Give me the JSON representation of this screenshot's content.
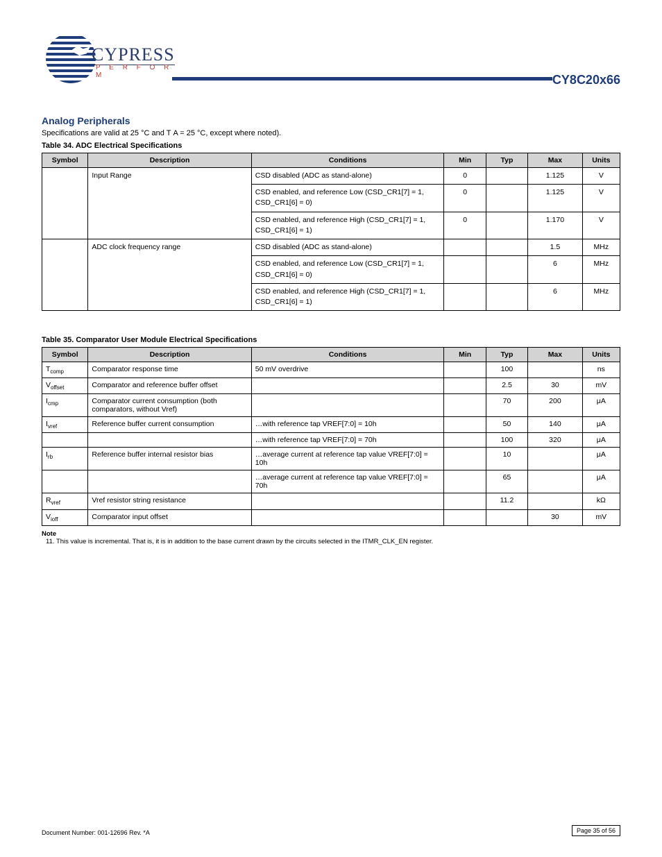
{
  "header": {
    "brand_top": "CYPRESS",
    "brand_sub": "P E R F O R M",
    "part_number": "CY8C20x66"
  },
  "region_title": "Analog Peripherals",
  "region_note": "Specifications are valid at 25 °C and T A = 25 °C, except where noted).",
  "table34": {
    "title": "Table 34.  ADC Electrical Specifications",
    "columns": [
      "Symbol",
      "Description",
      "Conditions",
      "Min",
      "Typ",
      "Max",
      "Units"
    ],
    "rows": [
      {
        "sym": "",
        "desc": "Input Range",
        "cond": [
          "CSD disabled (ADC as stand-alone)",
          "CSD enabled, and reference Low (CSD_CR1[7] = 1, CSD_CR1[6] = 0)",
          "CSD enabled, and reference High (CSD_CR1[7] = 1, CSD_CR1[6] = 1)"
        ],
        "min": [
          "0",
          "0",
          "0"
        ],
        "typ": [
          "",
          "",
          ""
        ],
        "max": [
          "1.125",
          "1.125",
          "1.170"
        ],
        "units": [
          "V",
          "V",
          "V"
        ]
      },
      {
        "sym": "",
        "desc": "ADC clock frequency range",
        "cond": [
          "CSD disabled (ADC as stand-alone)",
          "CSD enabled, and reference Low (CSD_CR1[7] = 1, CSD_CR1[6] = 0)",
          "CSD enabled, and reference High (CSD_CR1[7] = 1, CSD_CR1[6] = 1)"
        ],
        "min": [
          "",
          "",
          ""
        ],
        "typ": [
          "",
          "",
          ""
        ],
        "max": [
          "1.5",
          "6",
          "6"
        ],
        "units": [
          "MHz",
          "MHz",
          "MHz"
        ]
      }
    ]
  },
  "table35": {
    "title": "Table 35.  Comparator User Module Electrical Specifications",
    "columns": [
      "Symbol",
      "Description",
      "Conditions",
      "Min",
      "Typ",
      "Max",
      "Units"
    ],
    "rows": [
      [
        "T<sub>comp</sub>",
        "Comparator response time",
        "50 mV overdrive",
        "",
        "100",
        "",
        "ns"
      ],
      [
        "V<sub>offset</sub>",
        "Comparator and reference buffer offset",
        "",
        "",
        "2.5",
        "30",
        "mV"
      ],
      [
        "I<sub>cmp</sub>",
        "Comparator current consumption (both comparators, without Vref)",
        "",
        "",
        "70",
        "200",
        "μA"
      ],
      [
        "I<sub>vref</sub>",
        "Reference buffer current consumption",
        "…with reference tap VREF[7:0] = 10h",
        "",
        "50",
        "140",
        "μA"
      ],
      [
        "",
        "",
        "…with reference tap VREF[7:0] = 70h",
        "",
        "100",
        "320",
        "μA"
      ],
      [
        "I<sub>rb</sub>",
        "Reference buffer internal resistor bias",
        "…average current at reference tap value VREF[7:0] = 10h",
        "",
        "10",
        "",
        "μA"
      ],
      [
        "",
        "",
        "…average current at reference tap value VREF[7:0] = 70h",
        "",
        "65",
        "",
        "μA"
      ],
      [
        "R<sub>vref</sub>",
        "Vref resistor string resistance",
        "",
        "",
        "11.2",
        "",
        "kΩ"
      ],
      [
        "V<sub>ioff</sub>",
        "Comparator input offset",
        "",
        "",
        "",
        "30",
        "mV"
      ]
    ],
    "note_label": "Note",
    "note": "11. This value is incremental. That is, it is in addition to the base current drawn by the circuits selected in the ITMR_CLK_EN register."
  },
  "footer": {
    "left": "Document Number: 001-12696 Rev. *A",
    "page_label": "Page 35 of 56"
  }
}
